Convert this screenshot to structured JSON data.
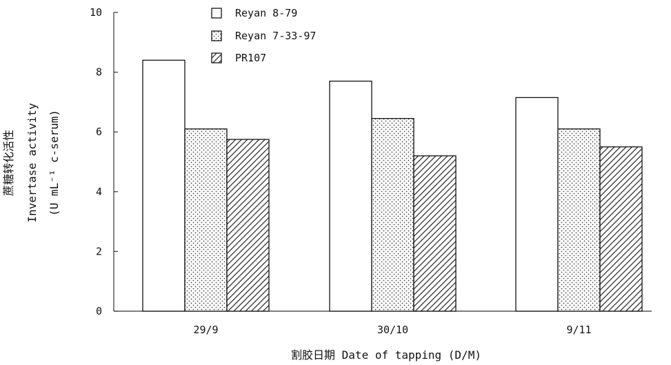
{
  "chart_data": {
    "type": "bar",
    "categories": [
      "29/9",
      "30/10",
      "9/11"
    ],
    "series": [
      {
        "name": "Reyan 8-79",
        "values": [
          8.4,
          7.7,
          7.15
        ],
        "pattern": "blank"
      },
      {
        "name": "Reyan 7-33-97",
        "values": [
          6.1,
          6.45,
          6.1
        ],
        "pattern": "dots"
      },
      {
        "name": "PR107",
        "values": [
          5.75,
          5.2,
          5.5
        ],
        "pattern": "diagonal-hatch"
      }
    ],
    "xlabel": "割胶日期 Date of tapping (D/M)",
    "ylabel_lines": [
      "蔗糖转化活性",
      "Invertase activity",
      "(U mL⁻¹ c-serum)"
    ],
    "ylim": [
      0,
      10
    ],
    "yticks": [
      0,
      2,
      4,
      6,
      8,
      10
    ],
    "grid": false,
    "legend_position": "top-center",
    "colors": {
      "bar_fill": "#ffffff",
      "stroke": "#111111",
      "axis": "#333333"
    }
  }
}
